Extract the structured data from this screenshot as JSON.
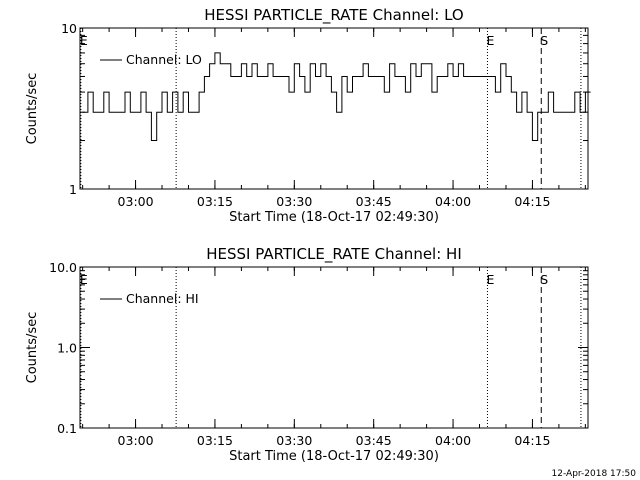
{
  "footer": {
    "timestamp": "12-Apr-2018 17:50"
  },
  "chart_data": [
    {
      "type": "line",
      "title": "HESSI PARTICLE_RATE Channel: LO",
      "xlabel": "Start Time (18-Oct-17 02:49:30)",
      "ylabel": "Counts/sec",
      "yscale": "log",
      "ylim": [
        1,
        10
      ],
      "y_tick_labels": [
        "1",
        "10"
      ],
      "xlim": [
        "02:49:30",
        "04:25:30"
      ],
      "x_tick_labels": [
        "03:00",
        "03:15",
        "03:30",
        "03:45",
        "04:00",
        "04:15"
      ],
      "grid": false,
      "legend_position": "top-left",
      "series": [
        {
          "name": "Channel: LO",
          "x": [
            "02:50",
            "02:51",
            "02:52",
            "02:53",
            "02:54",
            "02:55",
            "02:56",
            "02:57",
            "02:58",
            "02:59",
            "03:00",
            "03:01",
            "03:02",
            "03:03",
            "03:04",
            "03:05",
            "03:06",
            "03:07",
            "03:08",
            "03:09",
            "03:10",
            "03:11",
            "03:12",
            "03:13",
            "03:14",
            "03:15",
            "03:16",
            "03:17",
            "03:18",
            "03:19",
            "03:20",
            "03:21",
            "03:22",
            "03:23",
            "03:24",
            "03:25",
            "03:26",
            "03:27",
            "03:28",
            "03:29",
            "03:30",
            "03:31",
            "03:32",
            "03:33",
            "03:34",
            "03:35",
            "03:36",
            "03:37",
            "03:38",
            "03:39",
            "03:40",
            "03:41",
            "03:42",
            "03:43",
            "03:44",
            "03:45",
            "03:46",
            "03:47",
            "03:48",
            "03:49",
            "03:50",
            "03:51",
            "03:52",
            "03:53",
            "03:54",
            "03:55",
            "03:56",
            "03:57",
            "03:58",
            "03:59",
            "04:00",
            "04:01",
            "04:02",
            "04:03",
            "04:04",
            "04:05",
            "04:06",
            "04:07",
            "04:08",
            "04:09",
            "04:10",
            "04:11",
            "04:12",
            "04:13",
            "04:14",
            "04:15",
            "04:16",
            "04:17",
            "04:18",
            "04:19",
            "04:20",
            "04:21",
            "04:22",
            "04:23",
            "04:24",
            "04:25"
          ],
          "y": [
            3,
            4,
            3,
            3,
            4,
            3,
            3,
            3,
            4,
            3,
            3,
            4,
            3,
            2,
            3,
            4,
            3,
            4,
            3,
            4,
            3,
            3,
            4,
            5,
            6,
            7,
            6,
            6,
            5,
            5,
            6,
            5,
            6,
            5,
            5,
            6,
            5,
            5,
            5,
            4,
            6,
            5,
            4,
            6,
            5,
            6,
            5,
            4,
            3,
            5,
            4,
            5,
            5,
            6,
            5,
            5,
            5,
            4,
            6,
            5,
            5,
            4,
            6,
            5,
            6,
            6,
            4,
            5,
            5,
            6,
            5,
            6,
            5,
            5,
            5,
            5,
            5,
            5,
            4,
            6,
            5,
            4,
            3,
            4,
            3,
            2,
            3,
            3,
            4,
            3,
            3,
            3,
            3,
            4,
            3,
            4
          ],
          "color": "#000000"
        }
      ],
      "markers": [
        {
          "label": "E",
          "time": "02:49:40",
          "style": "dotted"
        },
        {
          "label": "",
          "time": "03:07:40",
          "style": "dotted"
        },
        {
          "label": "E",
          "time": "04:06:30",
          "style": "dotted"
        },
        {
          "label": "S",
          "time": "04:16:40",
          "style": "dashed"
        },
        {
          "label": "",
          "time": "04:24:10",
          "style": "dotted"
        }
      ]
    },
    {
      "type": "line",
      "title": "HESSI PARTICLE_RATE Channel: HI",
      "xlabel": "Start Time (18-Oct-17 02:49:30)",
      "ylabel": "Counts/sec",
      "yscale": "log",
      "ylim": [
        0.1,
        10
      ],
      "y_tick_labels": [
        "0.1",
        "1.0",
        "10.0"
      ],
      "xlim": [
        "02:49:30",
        "04:25:30"
      ],
      "x_tick_labels": [
        "03:00",
        "03:15",
        "03:30",
        "03:45",
        "04:00",
        "04:15"
      ],
      "grid": false,
      "legend_position": "top-left",
      "series": [
        {
          "name": "Channel: HI",
          "x": [],
          "y": [],
          "color": "#000000"
        }
      ],
      "markers": [
        {
          "label": "E",
          "time": "02:49:40",
          "style": "dotted"
        },
        {
          "label": "",
          "time": "03:07:40",
          "style": "dotted"
        },
        {
          "label": "E",
          "time": "04:06:30",
          "style": "dotted"
        },
        {
          "label": "S",
          "time": "04:16:40",
          "style": "dashed"
        },
        {
          "label": "",
          "time": "04:24:10",
          "style": "dotted"
        }
      ]
    }
  ]
}
